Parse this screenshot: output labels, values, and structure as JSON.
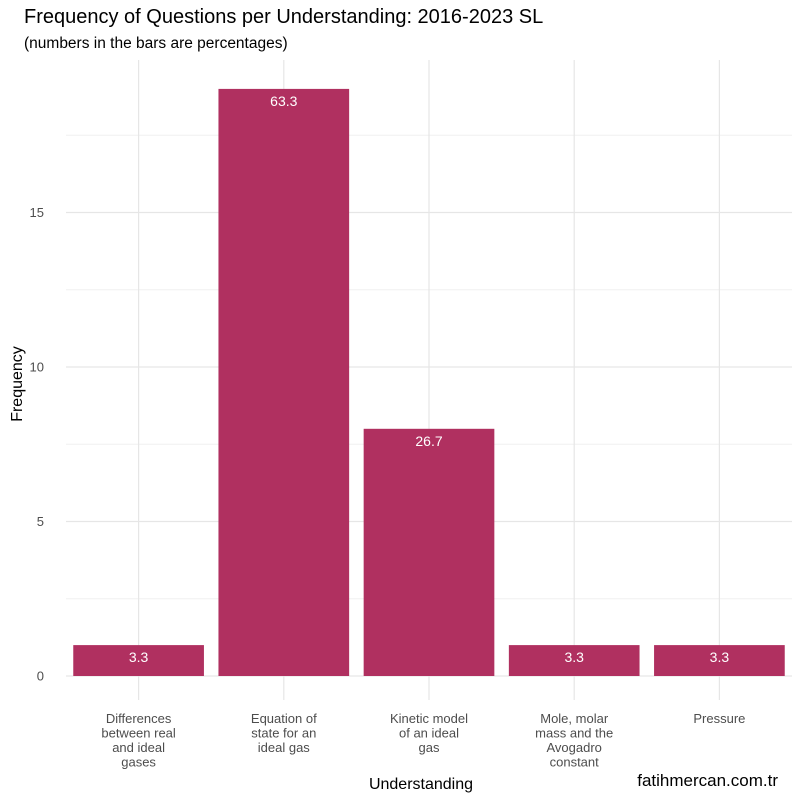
{
  "chart_data": {
    "type": "bar",
    "title": "Frequency of Questions per Understanding: 2016-2023 SL",
    "subtitle": "(numbers in the bars are percentages)",
    "xlabel": "Understanding",
    "ylabel": "Frequency",
    "categories": [
      [
        "Differences",
        "between real",
        "and ideal",
        "gases"
      ],
      [
        "Equation of",
        "state for an",
        "ideal gas"
      ],
      [
        "Kinetic model",
        "of an ideal",
        "gas"
      ],
      [
        "Mole, molar",
        "mass and the",
        "Avogadro",
        "constant"
      ],
      [
        "Pressure"
      ]
    ],
    "values": [
      1,
      19,
      8,
      1,
      1
    ],
    "labels": [
      "3.3",
      "63.3",
      "26.7",
      "3.3",
      "3.3"
    ],
    "ylim": [
      0,
      19.95
    ],
    "yticks": [
      0,
      5,
      10,
      15
    ],
    "grid": true,
    "bar_color": "#B03060",
    "caption": "fatihmercan.com.tr"
  }
}
